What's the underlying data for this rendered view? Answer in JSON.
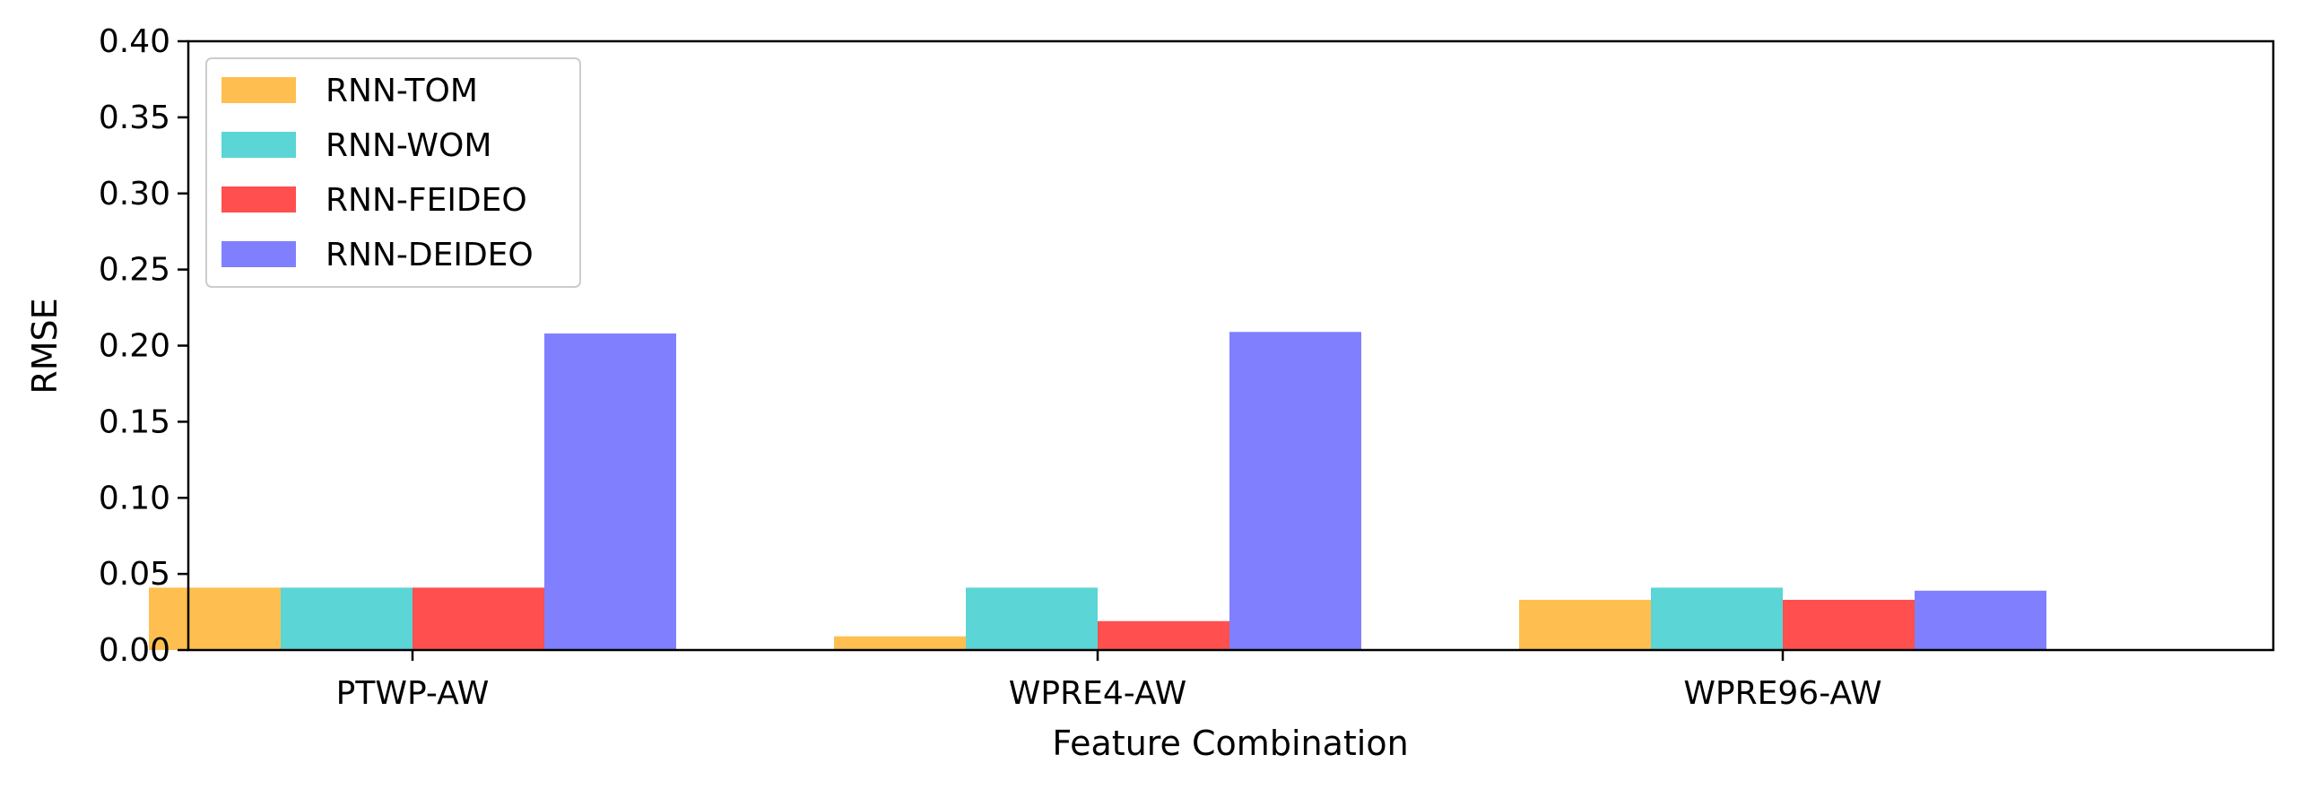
{
  "chart_data": {
    "type": "bar",
    "title": "",
    "xlabel": "Feature Combination",
    "ylabel": "RMSE",
    "categories": [
      "PTWP-AW",
      "WPRE4-AW",
      "WPRE96-AW"
    ],
    "ylim": [
      0,
      0.4
    ],
    "yticks": [
      "0.00",
      "0.05",
      "0.10",
      "0.15",
      "0.20",
      "0.25",
      "0.30",
      "0.35",
      "0.40"
    ],
    "grid": false,
    "legend_position": "top-left",
    "series": [
      {
        "name": "RNN-TOM",
        "color": "#FFBF50",
        "values": [
          0.041,
          0.009,
          0.033
        ]
      },
      {
        "name": "RNN-WOM",
        "color": "#5BD5D5",
        "values": [
          0.041,
          0.041,
          0.041
        ]
      },
      {
        "name": "RNN-FEIDEO",
        "color": "#FF4F4F",
        "values": [
          0.041,
          0.019,
          0.033
        ]
      },
      {
        "name": "RNN-DEIDEO",
        "color": "#8080FF",
        "values": [
          0.208,
          0.209,
          0.039
        ]
      }
    ]
  }
}
